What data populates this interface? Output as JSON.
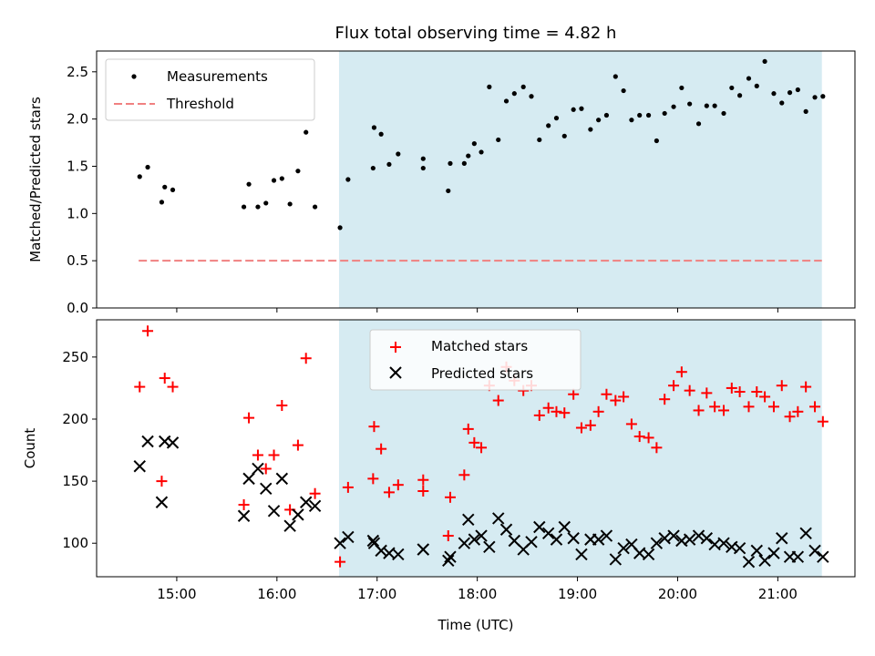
{
  "chart_data": {
    "type": "scatter",
    "title": "Flux total observing time = 4.82 h",
    "xlabel": "Time (UTC)",
    "x_ticks": [
      "15:00",
      "16:00",
      "17:00",
      "18:00",
      "19:00",
      "20:00",
      "21:00"
    ],
    "x_tick_hours": [
      15,
      16,
      17,
      18,
      19,
      20,
      21
    ],
    "xlim_hours": [
      14.2,
      21.77
    ],
    "shaded_region_hours": [
      16.62,
      21.44
    ],
    "shaded_color": "#add8e6",
    "top_panel": {
      "ylabel": "Matched/Predicted stars",
      "ylim": [
        0,
        2.72
      ],
      "y_ticks": [
        0.0,
        0.5,
        1.0,
        1.5,
        2.0,
        2.5
      ],
      "y_tick_labels": [
        "0.0",
        "0.5",
        "1.0",
        "1.5",
        "2.0",
        "2.5"
      ],
      "legend": {
        "placement": "upper-left",
        "measurements_label": "Measurements",
        "threshold_label": "Threshold"
      },
      "threshold": {
        "value": 0.5,
        "x_range_hours": [
          14.62,
          21.44
        ],
        "color": "#f08080"
      },
      "measurements": [
        [
          14.63,
          1.39
        ],
        [
          14.71,
          1.49
        ],
        [
          14.85,
          1.12
        ],
        [
          14.88,
          1.28
        ],
        [
          14.96,
          1.25
        ],
        [
          15.67,
          1.07
        ],
        [
          15.72,
          1.31
        ],
        [
          15.81,
          1.07
        ],
        [
          15.89,
          1.11
        ],
        [
          15.97,
          1.35
        ],
        [
          16.05,
          1.37
        ],
        [
          16.13,
          1.1
        ],
        [
          16.21,
          1.45
        ],
        [
          16.29,
          1.86
        ],
        [
          16.38,
          1.07
        ],
        [
          16.63,
          0.85
        ],
        [
          16.71,
          1.36
        ],
        [
          16.96,
          1.48
        ],
        [
          16.97,
          1.91
        ],
        [
          17.04,
          1.84
        ],
        [
          17.12,
          1.52
        ],
        [
          17.21,
          1.63
        ],
        [
          17.46,
          1.48
        ],
        [
          17.46,
          1.58
        ],
        [
          17.71,
          1.24
        ],
        [
          17.73,
          1.53
        ],
        [
          17.87,
          1.53
        ],
        [
          17.91,
          1.61
        ],
        [
          17.97,
          1.74
        ],
        [
          18.04,
          1.65
        ],
        [
          18.12,
          2.34
        ],
        [
          18.21,
          1.78
        ],
        [
          18.29,
          2.19
        ],
        [
          18.37,
          2.27
        ],
        [
          18.46,
          2.34
        ],
        [
          18.54,
          2.24
        ],
        [
          18.62,
          1.78
        ],
        [
          18.71,
          1.93
        ],
        [
          18.79,
          2.01
        ],
        [
          18.87,
          1.82
        ],
        [
          18.96,
          2.1
        ],
        [
          19.04,
          2.11
        ],
        [
          19.13,
          1.89
        ],
        [
          19.21,
          1.99
        ],
        [
          19.29,
          2.04
        ],
        [
          19.38,
          2.45
        ],
        [
          19.46,
          2.3
        ],
        [
          19.54,
          1.99
        ],
        [
          19.62,
          2.04
        ],
        [
          19.71,
          2.04
        ],
        [
          19.79,
          1.77
        ],
        [
          19.87,
          2.06
        ],
        [
          19.96,
          2.13
        ],
        [
          20.04,
          2.33
        ],
        [
          20.12,
          2.16
        ],
        [
          20.21,
          1.95
        ],
        [
          20.29,
          2.14
        ],
        [
          20.37,
          2.14
        ],
        [
          20.46,
          2.06
        ],
        [
          20.54,
          2.33
        ],
        [
          20.62,
          2.25
        ],
        [
          20.71,
          2.43
        ],
        [
          20.79,
          2.35
        ],
        [
          20.87,
          2.61
        ],
        [
          20.96,
          2.27
        ],
        [
          21.04,
          2.17
        ],
        [
          21.12,
          2.28
        ],
        [
          21.2,
          2.31
        ],
        [
          21.28,
          2.08
        ],
        [
          21.37,
          2.23
        ],
        [
          21.45,
          2.24
        ]
      ]
    },
    "bottom_panel": {
      "ylabel": "Count",
      "ylim": [
        73,
        280
      ],
      "y_ticks": [
        100,
        150,
        200,
        250
      ],
      "y_tick_labels": [
        "100",
        "150",
        "200",
        "250"
      ],
      "legend": {
        "placement": "upper-center",
        "matched_label": "Matched stars",
        "predicted_label": "Predicted stars"
      },
      "matched": [
        [
          14.63,
          226
        ],
        [
          14.71,
          271
        ],
        [
          14.85,
          150
        ],
        [
          14.88,
          233
        ],
        [
          14.96,
          226
        ],
        [
          15.67,
          131
        ],
        [
          15.72,
          201
        ],
        [
          15.81,
          171
        ],
        [
          15.89,
          160
        ],
        [
          15.97,
          171
        ],
        [
          16.05,
          211
        ],
        [
          16.13,
          127
        ],
        [
          16.21,
          179
        ],
        [
          16.29,
          249
        ],
        [
          16.38,
          140
        ],
        [
          16.63,
          85
        ],
        [
          16.71,
          145
        ],
        [
          16.96,
          152
        ],
        [
          16.97,
          194
        ],
        [
          17.04,
          176
        ],
        [
          17.12,
          141
        ],
        [
          17.21,
          147
        ],
        [
          17.46,
          142
        ],
        [
          17.46,
          151
        ],
        [
          17.71,
          106
        ],
        [
          17.73,
          137
        ],
        [
          17.87,
          155
        ],
        [
          17.91,
          192
        ],
        [
          17.97,
          181
        ],
        [
          18.04,
          177
        ],
        [
          18.12,
          227
        ],
        [
          18.21,
          215
        ],
        [
          18.29,
          242
        ],
        [
          18.37,
          231
        ],
        [
          18.46,
          223
        ],
        [
          18.54,
          227
        ],
        [
          18.62,
          203
        ],
        [
          18.71,
          209
        ],
        [
          18.79,
          206
        ],
        [
          18.87,
          205
        ],
        [
          18.96,
          220
        ],
        [
          19.04,
          193
        ],
        [
          19.13,
          195
        ],
        [
          19.21,
          206
        ],
        [
          19.29,
          220
        ],
        [
          19.38,
          215
        ],
        [
          19.46,
          218
        ],
        [
          19.54,
          196
        ],
        [
          19.62,
          186
        ],
        [
          19.71,
          185
        ],
        [
          19.79,
          177
        ],
        [
          19.87,
          216
        ],
        [
          19.96,
          227
        ],
        [
          20.04,
          238
        ],
        [
          20.12,
          223
        ],
        [
          20.21,
          207
        ],
        [
          20.29,
          221
        ],
        [
          20.37,
          210
        ],
        [
          20.46,
          207
        ],
        [
          20.54,
          225
        ],
        [
          20.62,
          222
        ],
        [
          20.71,
          210
        ],
        [
          20.79,
          222
        ],
        [
          20.87,
          218
        ],
        [
          20.96,
          210
        ],
        [
          21.04,
          227
        ],
        [
          21.12,
          202
        ],
        [
          21.2,
          206
        ],
        [
          21.28,
          226
        ],
        [
          21.37,
          210
        ],
        [
          21.45,
          198
        ]
      ],
      "predicted": [
        [
          14.63,
          162
        ],
        [
          14.71,
          182
        ],
        [
          14.85,
          133
        ],
        [
          14.88,
          182
        ],
        [
          14.96,
          181
        ],
        [
          15.67,
          122
        ],
        [
          15.72,
          152
        ],
        [
          15.81,
          160
        ],
        [
          15.89,
          144
        ],
        [
          15.97,
          126
        ],
        [
          16.05,
          152
        ],
        [
          16.13,
          114
        ],
        [
          16.21,
          123
        ],
        [
          16.29,
          133
        ],
        [
          16.38,
          130
        ],
        [
          16.63,
          100
        ],
        [
          16.71,
          105
        ],
        [
          16.96,
          102
        ],
        [
          16.97,
          100
        ],
        [
          17.04,
          94
        ],
        [
          17.12,
          92
        ],
        [
          17.21,
          91
        ],
        [
          17.46,
          95
        ],
        [
          17.46,
          95
        ],
        [
          17.71,
          86
        ],
        [
          17.73,
          89
        ],
        [
          17.87,
          100
        ],
        [
          17.91,
          119
        ],
        [
          17.97,
          103
        ],
        [
          18.04,
          106
        ],
        [
          18.12,
          97
        ],
        [
          18.21,
          120
        ],
        [
          18.29,
          111
        ],
        [
          18.37,
          102
        ],
        [
          18.46,
          95
        ],
        [
          18.54,
          101
        ],
        [
          18.62,
          113
        ],
        [
          18.71,
          108
        ],
        [
          18.79,
          103
        ],
        [
          18.87,
          113
        ],
        [
          18.96,
          104
        ],
        [
          19.04,
          91
        ],
        [
          19.13,
          103
        ],
        [
          19.21,
          103
        ],
        [
          19.29,
          106
        ],
        [
          19.38,
          87
        ],
        [
          19.46,
          96
        ],
        [
          19.54,
          99
        ],
        [
          19.62,
          92
        ],
        [
          19.71,
          91
        ],
        [
          19.79,
          100
        ],
        [
          19.87,
          104
        ],
        [
          19.96,
          106
        ],
        [
          20.04,
          102
        ],
        [
          20.12,
          103
        ],
        [
          20.21,
          106
        ],
        [
          20.29,
          104
        ],
        [
          20.37,
          99
        ],
        [
          20.46,
          100
        ],
        [
          20.54,
          97
        ],
        [
          20.62,
          96
        ],
        [
          20.71,
          85
        ],
        [
          20.79,
          94
        ],
        [
          20.87,
          86
        ],
        [
          20.96,
          92
        ],
        [
          21.04,
          104
        ],
        [
          21.12,
          89
        ],
        [
          21.2,
          89
        ],
        [
          21.28,
          108
        ],
        [
          21.37,
          94
        ],
        [
          21.45,
          89
        ]
      ]
    }
  }
}
